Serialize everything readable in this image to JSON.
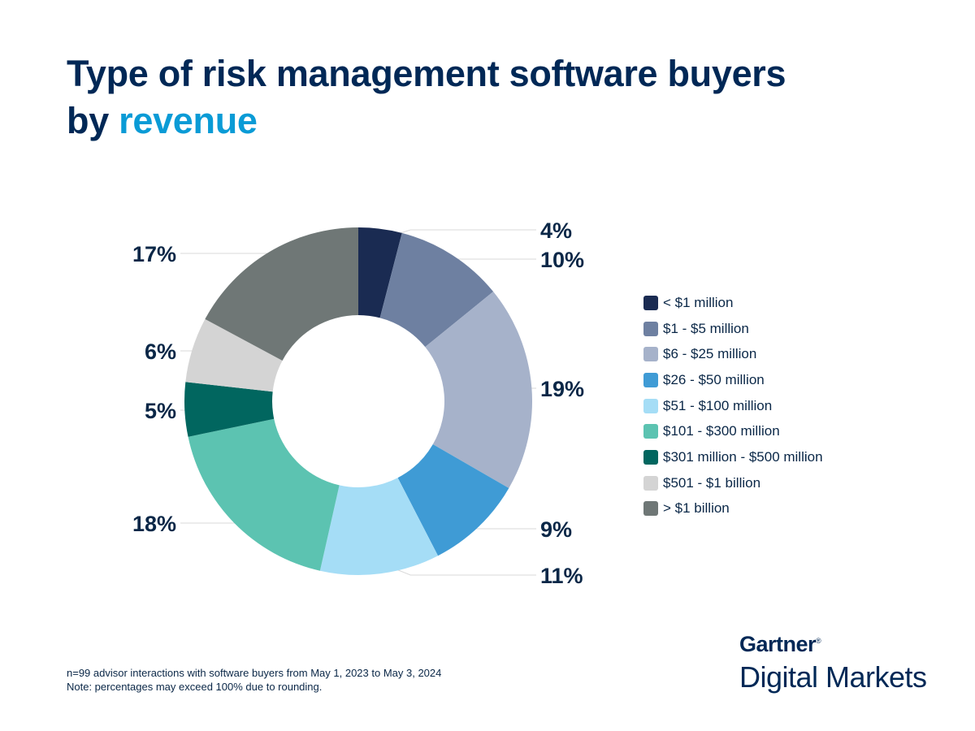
{
  "title": {
    "line1": "Type of risk management software buyers",
    "line2_prefix": "by ",
    "line2_highlight": "revenue"
  },
  "colors": {
    "title": "#002856",
    "highlight": "#0a9bd6"
  },
  "chart_data": {
    "type": "pie",
    "donut": true,
    "categories": [
      "< $1 million",
      "$1 - $5 million",
      "$6 - $25 million",
      "$26 - $50 million",
      "$51 - $100 million",
      "$101 - $300 million",
      "$301 million - $500 million",
      "$501 - $1 billion",
      "> $1 billion"
    ],
    "values": [
      4,
      10,
      19,
      9,
      11,
      18,
      5,
      6,
      17
    ],
    "labels": [
      "4%",
      "10%",
      "19%",
      "9%",
      "11%",
      "18%",
      "5%",
      "6%",
      "17%"
    ],
    "colors": [
      "#1a2b52",
      "#6e80a1",
      "#a6b2ca",
      "#3f9bd5",
      "#a5ddf6",
      "#5cc3b1",
      "#01665f",
      "#d4d4d4",
      "#6f7776"
    ],
    "legend_position": "right"
  },
  "notes": [
    "n=99 advisor interactions with software buyers from May 1, 2023 to May 3, 2024",
    "Note: percentages may exceed 100% due to rounding."
  ],
  "logo": {
    "brand": "Gartner",
    "mark": "®",
    "product": "Digital Markets"
  }
}
